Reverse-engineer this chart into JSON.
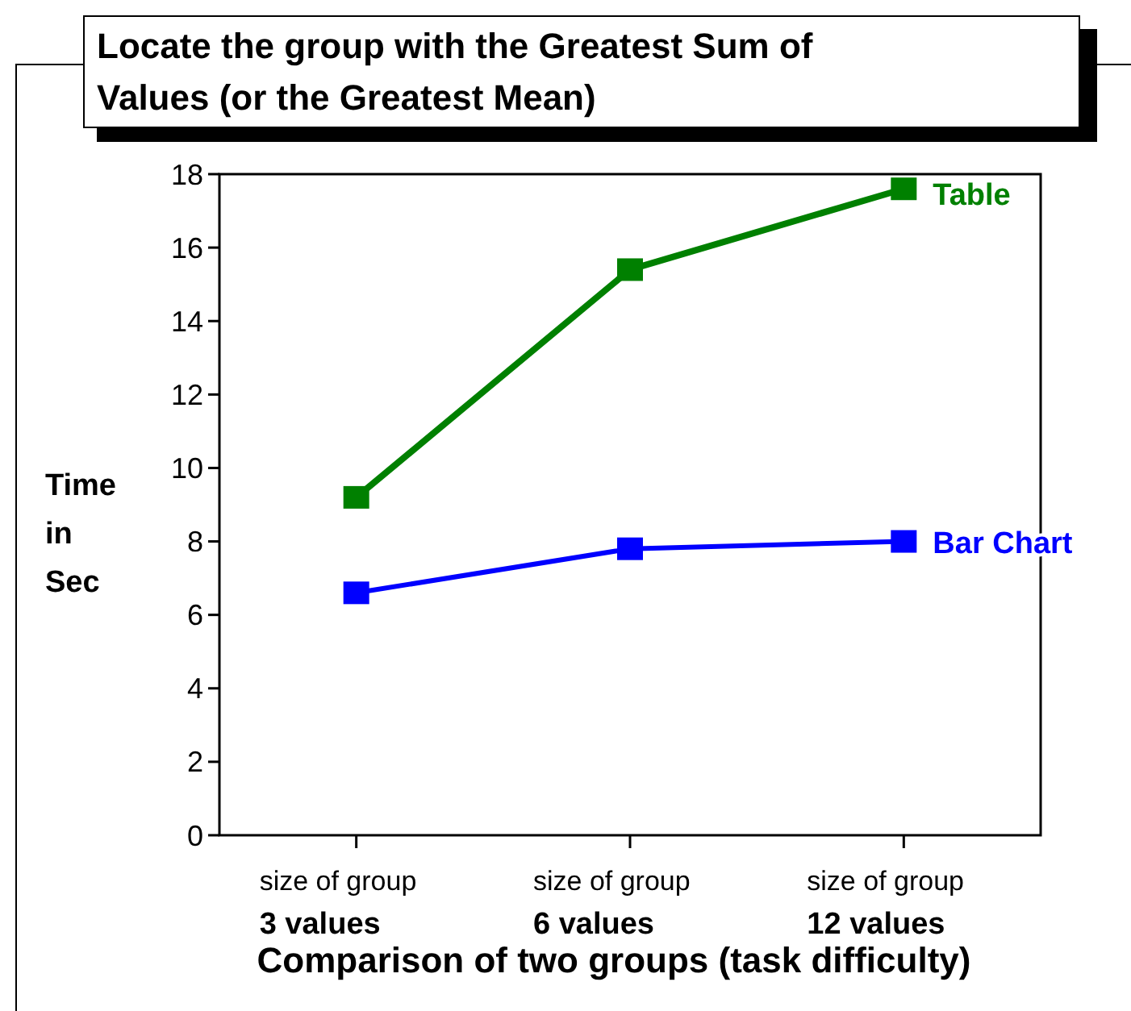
{
  "chart_data": {
    "type": "line",
    "title": "Locate the group with the Greatest Sum of Values (or the Greatest Mean)",
    "xlabel": "Comparison of two groups (task difficulty)",
    "ylabel": "Time in Sec",
    "categories": [
      "size of group 3 values",
      "size of group 6 values",
      "size of group 12 values"
    ],
    "series": [
      {
        "name": "Table",
        "color": "#008000",
        "values": [
          9.2,
          15.4,
          17.6
        ]
      },
      {
        "name": "Bar Chart",
        "color": "#0000ff",
        "values": [
          6.6,
          7.8,
          8.0
        ]
      }
    ],
    "ylim": [
      0,
      18
    ],
    "yticks": [
      0,
      2,
      4,
      6,
      8,
      10,
      12,
      14,
      16,
      18
    ],
    "grid": false,
    "legend": "right",
    "marker": "square",
    "line_style": "solid"
  }
}
